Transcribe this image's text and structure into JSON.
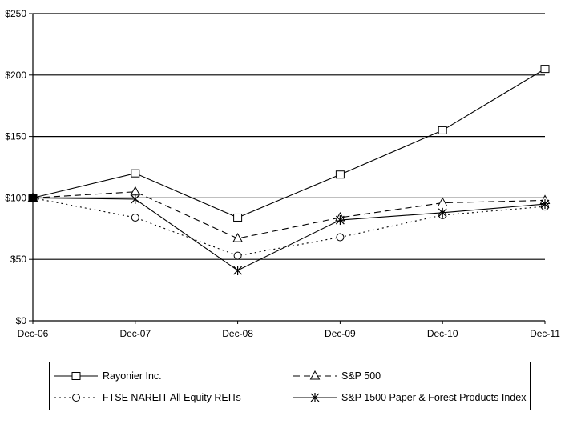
{
  "chart_data": {
    "type": "line",
    "title": "",
    "xlabel": "",
    "ylabel": "",
    "categories": [
      "Dec-06",
      "Dec-07",
      "Dec-08",
      "Dec-09",
      "Dec-10",
      "Dec-11"
    ],
    "ylim": [
      0,
      250
    ],
    "yticks": [
      0,
      50,
      100,
      150,
      200,
      250
    ],
    "ytick_labels": [
      "$0",
      "$50",
      "$100",
      "$150",
      "$200",
      "$250"
    ],
    "grid": "horizontal",
    "legend_position": "bottom",
    "series": [
      {
        "name": "Rayonier Inc.",
        "values": [
          100,
          120,
          84,
          119,
          155,
          205
        ],
        "marker": "square",
        "line_style": "solid",
        "color": "#000000"
      },
      {
        "name": "S&P 500",
        "values": [
          100,
          105,
          67,
          84,
          96,
          98
        ],
        "marker": "triangle",
        "line_style": "dashed",
        "color": "#000000"
      },
      {
        "name": "FTSE NAREIT All Equity REITs",
        "values": [
          100,
          84,
          53,
          68,
          86,
          93
        ],
        "marker": "circle",
        "line_style": "dotted",
        "color": "#000000"
      },
      {
        "name": "S&P 1500 Paper & Forest Products Index",
        "values": [
          100,
          99,
          41,
          82,
          88,
          95
        ],
        "marker": "asterisk",
        "line_style": "solid",
        "color": "#000000"
      }
    ]
  }
}
